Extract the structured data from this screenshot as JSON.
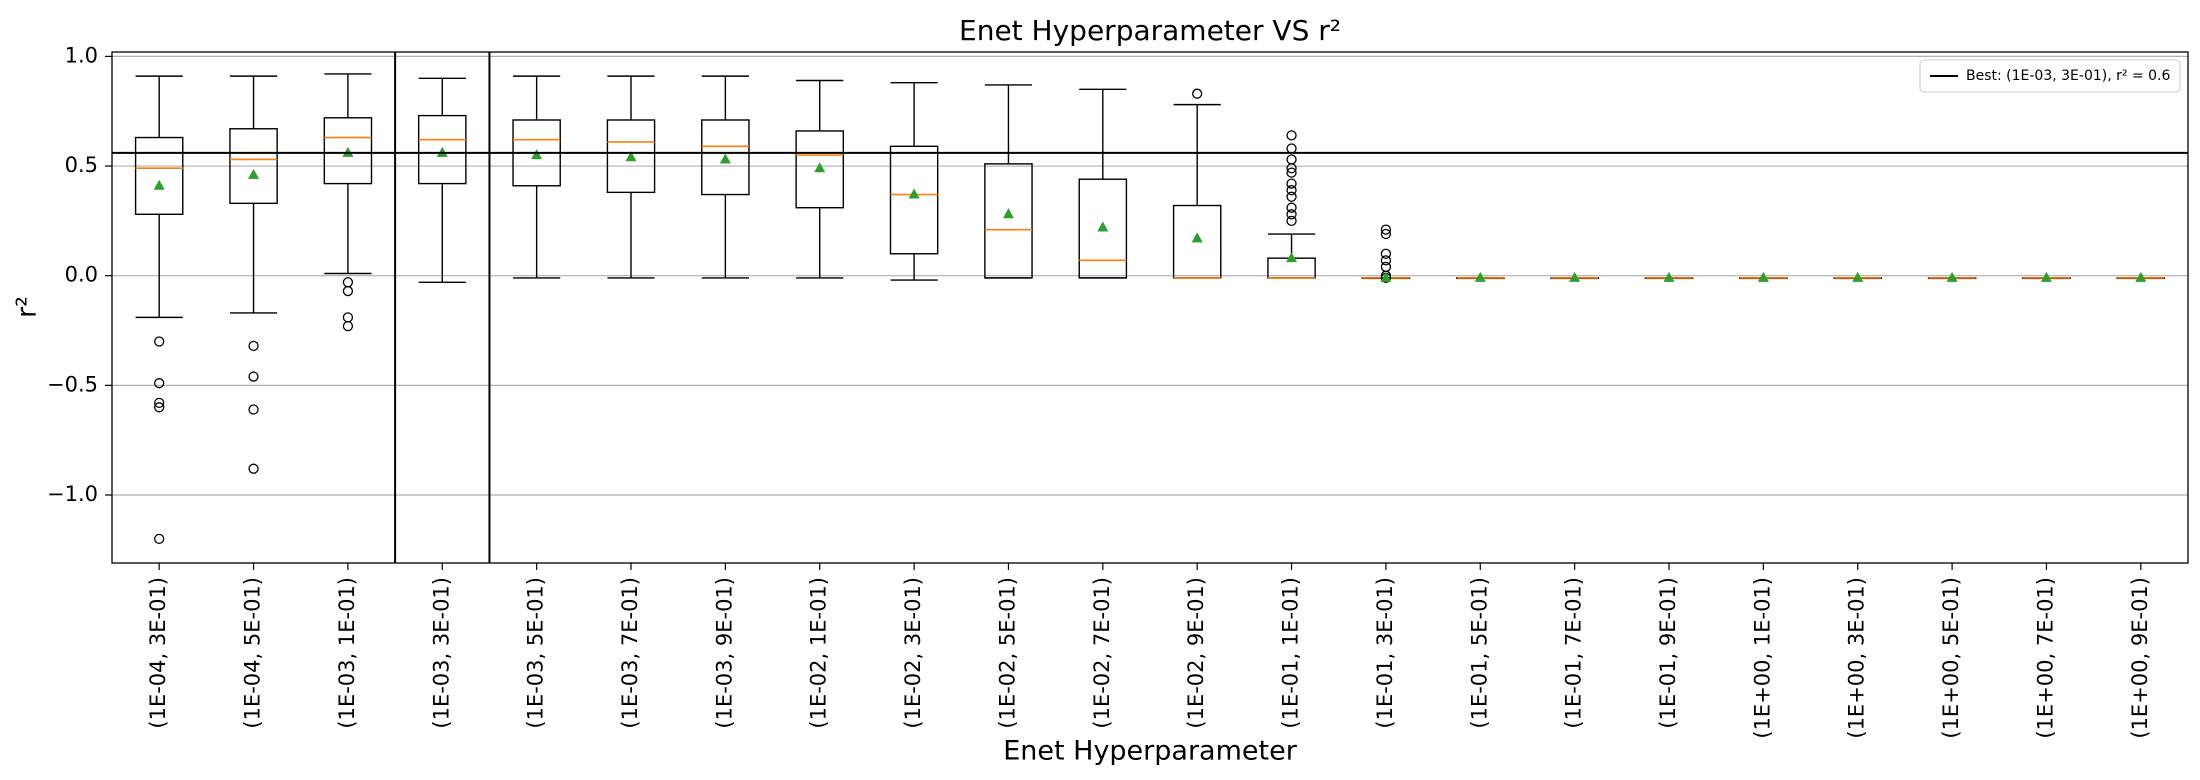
{
  "chart_data": {
    "type": "box",
    "title": "Enet Hyperparameter VS r²",
    "x_label": "Enet Hyperparameter",
    "y_label": "r²",
    "categories": [
      "(1E-04, 3E-01)",
      "(1E-04, 5E-01)",
      "(1E-03, 1E-01)",
      "(1E-03, 3E-01)",
      "(1E-03, 5E-01)",
      "(1E-03, 7E-01)",
      "(1E-03, 9E-01)",
      "(1E-02, 1E-01)",
      "(1E-02, 3E-01)",
      "(1E-02, 5E-01)",
      "(1E-02, 7E-01)",
      "(1E-02, 9E-01)",
      "(1E-01, 1E-01)",
      "(1E-01, 3E-01)",
      "(1E-01, 5E-01)",
      "(1E-01, 7E-01)",
      "(1E-01, 9E-01)",
      "(1E+00, 1E-01)",
      "(1E+00, 3E-01)",
      "(1E+00, 5E-01)",
      "(1E+00, 7E-01)",
      "(1E+00, 9E-01)"
    ],
    "boxes": [
      {
        "whislo": -0.19,
        "q1": 0.28,
        "med": 0.49,
        "q3": 0.63,
        "whishi": 0.91,
        "mean": 0.41,
        "fliers": [
          -0.3,
          -0.49,
          -0.58,
          -0.6,
          -1.2
        ]
      },
      {
        "whislo": -0.17,
        "q1": 0.33,
        "med": 0.53,
        "q3": 0.67,
        "whishi": 0.91,
        "mean": 0.46,
        "fliers": [
          -0.32,
          -0.46,
          -0.61,
          -0.88
        ]
      },
      {
        "whislo": 0.01,
        "q1": 0.42,
        "med": 0.63,
        "q3": 0.72,
        "whishi": 0.92,
        "mean": 0.56,
        "fliers": [
          -0.03,
          -0.07,
          -0.19,
          -0.23
        ]
      },
      {
        "whislo": -0.03,
        "q1": 0.42,
        "med": 0.62,
        "q3": 0.73,
        "whishi": 0.9,
        "mean": 0.56,
        "fliers": []
      },
      {
        "whislo": -0.01,
        "q1": 0.41,
        "med": 0.62,
        "q3": 0.71,
        "whishi": 0.91,
        "mean": 0.55,
        "fliers": []
      },
      {
        "whislo": -0.01,
        "q1": 0.38,
        "med": 0.61,
        "q3": 0.71,
        "whishi": 0.91,
        "mean": 0.54,
        "fliers": []
      },
      {
        "whislo": -0.01,
        "q1": 0.37,
        "med": 0.59,
        "q3": 0.71,
        "whishi": 0.91,
        "mean": 0.53,
        "fliers": []
      },
      {
        "whislo": -0.01,
        "q1": 0.31,
        "med": 0.55,
        "q3": 0.66,
        "whishi": 0.89,
        "mean": 0.49,
        "fliers": []
      },
      {
        "whislo": -0.02,
        "q1": 0.1,
        "med": 0.37,
        "q3": 0.59,
        "whishi": 0.88,
        "mean": 0.37,
        "fliers": []
      },
      {
        "whislo": -0.01,
        "q1": -0.01,
        "med": 0.21,
        "q3": 0.51,
        "whishi": 0.87,
        "mean": 0.28,
        "fliers": []
      },
      {
        "whislo": -0.01,
        "q1": -0.01,
        "med": 0.07,
        "q3": 0.44,
        "whishi": 0.85,
        "mean": 0.22,
        "fliers": []
      },
      {
        "whislo": -0.01,
        "q1": -0.01,
        "med": -0.01,
        "q3": 0.32,
        "whishi": 0.78,
        "mean": 0.17,
        "fliers": [
          0.83
        ]
      },
      {
        "whislo": -0.01,
        "q1": -0.01,
        "med": -0.01,
        "q3": 0.08,
        "whishi": 0.19,
        "mean": 0.08,
        "fliers": [
          0.64,
          0.58,
          0.53,
          0.49,
          0.47,
          0.42,
          0.39,
          0.36,
          0.31,
          0.28,
          0.25
        ]
      },
      {
        "whislo": -0.01,
        "q1": -0.01,
        "med": -0.01,
        "q3": -0.01,
        "whishi": -0.01,
        "mean": -0.01,
        "fliers": [
          0.21,
          0.19,
          0.1,
          0.07,
          0.04,
          0.0,
          -0.01
        ]
      },
      {
        "whislo": -0.01,
        "q1": -0.01,
        "med": -0.01,
        "q3": -0.01,
        "whishi": -0.01,
        "mean": -0.01,
        "fliers": []
      },
      {
        "whislo": -0.01,
        "q1": -0.01,
        "med": -0.01,
        "q3": -0.01,
        "whishi": -0.01,
        "mean": -0.01,
        "fliers": []
      },
      {
        "whislo": -0.01,
        "q1": -0.01,
        "med": -0.01,
        "q3": -0.01,
        "whishi": -0.01,
        "mean": -0.01,
        "fliers": []
      },
      {
        "whislo": -0.01,
        "q1": -0.01,
        "med": -0.01,
        "q3": -0.01,
        "whishi": -0.01,
        "mean": -0.01,
        "fliers": []
      },
      {
        "whislo": -0.01,
        "q1": -0.01,
        "med": -0.01,
        "q3": -0.01,
        "whishi": -0.01,
        "mean": -0.01,
        "fliers": []
      },
      {
        "whislo": -0.01,
        "q1": -0.01,
        "med": -0.01,
        "q3": -0.01,
        "whishi": -0.01,
        "mean": -0.01,
        "fliers": []
      },
      {
        "whislo": -0.01,
        "q1": -0.01,
        "med": -0.01,
        "q3": -0.01,
        "whishi": -0.01,
        "mean": -0.01,
        "fliers": []
      },
      {
        "whislo": -0.01,
        "q1": -0.01,
        "med": -0.01,
        "q3": -0.01,
        "whishi": -0.01,
        "mean": -0.01,
        "fliers": []
      }
    ],
    "box_color": "#000000",
    "median_color": "#ff7f0e",
    "mean_color": "#2ca02c",
    "best_index": 3,
    "legend": "Best: (1E-03, 3E-01), r² = 0.6",
    "legend_loc": "upper right",
    "ylim": [
      -1.31,
      1.02
    ],
    "yticks": [
      {
        "value": -1,
        "label": "−1.0"
      },
      {
        "value": -0.5,
        "label": "−0.5"
      },
      {
        "value": 0,
        "label": "0.0"
      },
      0.5,
      {
        "value": 1,
        "label": "1.0"
      }
    ],
    "grid": true
  }
}
